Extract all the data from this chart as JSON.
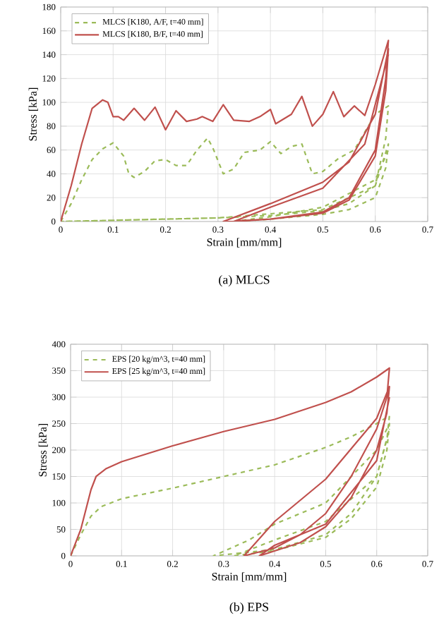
{
  "chart_data": [
    {
      "type": "line",
      "title": "(a) MLCS",
      "xlabel": "Strain [mm/mm]",
      "ylabel": "Stress [kPa]",
      "xlim": [
        0,
        0.7
      ],
      "ylim": [
        0,
        180
      ],
      "xticks": [
        0,
        0.1,
        0.2,
        0.3,
        0.4,
        0.5,
        0.6,
        0.7
      ],
      "yticks": [
        0,
        20,
        40,
        60,
        80,
        100,
        120,
        140,
        160,
        180
      ],
      "grid": true,
      "legend": "top left",
      "marker": "none",
      "series": [
        {
          "name": "MLCS [K180, A/F, t=40 mm]",
          "color": "#9bbb59",
          "line_style": "dashed",
          "x": [
            0,
            0.02,
            0.04,
            0.06,
            0.08,
            0.1,
            0.12,
            0.13,
            0.14,
            0.16,
            0.18,
            0.2,
            0.22,
            0.24,
            0.26,
            0.28,
            0.29,
            0.31,
            0.33,
            0.35,
            0.38,
            0.4,
            0.42,
            0.44,
            0.46,
            0.48,
            0.5,
            0.53,
            0.56,
            0.58,
            0.6,
            0.625,
            0.62,
            0.6,
            0.55,
            0.5,
            0.4,
            0.3,
            0.2,
            0.1,
            0,
            0.1,
            0.3,
            0.5,
            0.6,
            0.625,
            0.62,
            0.6,
            0.55,
            0.5,
            0.4,
            0.33,
            0.4,
            0.5,
            0.6,
            0.625
          ],
          "values": [
            0,
            15,
            35,
            52,
            61,
            66,
            55,
            40,
            37,
            42,
            51,
            52,
            47,
            47,
            60,
            70,
            62,
            40,
            44,
            58,
            60,
            67,
            57,
            63,
            65,
            40,
            42,
            53,
            60,
            75,
            90,
            97,
            70,
            30,
            15,
            9,
            5,
            3,
            2,
            1,
            0,
            1,
            3,
            10,
            30,
            65,
            45,
            20,
            10,
            6,
            2,
            0,
            4,
            12,
            35,
            60
          ]
        },
        {
          "name": "MLCS [K180, B/F, t=40 mm]",
          "color": "#c0504d",
          "line_style": "solid",
          "x": [
            0,
            0.02,
            0.04,
            0.06,
            0.08,
            0.09,
            0.1,
            0.11,
            0.12,
            0.14,
            0.16,
            0.18,
            0.2,
            0.22,
            0.24,
            0.26,
            0.27,
            0.29,
            0.31,
            0.33,
            0.36,
            0.38,
            0.4,
            0.41,
            0.44,
            0.46,
            0.48,
            0.5,
            0.52,
            0.54,
            0.56,
            0.58,
            0.6,
            0.625,
            0.62,
            0.6,
            0.55,
            0.5,
            0.4,
            0.31,
            0.4,
            0.5,
            0.55,
            0.6,
            0.625,
            0.62,
            0.6,
            0.55,
            0.5,
            0.4,
            0.33,
            0.4,
            0.5,
            0.58,
            0.625
          ],
          "values": [
            0,
            30,
            65,
            95,
            102,
            100,
            88,
            88,
            85,
            95,
            85,
            96,
            77,
            93,
            84,
            86,
            88,
            84,
            98,
            85,
            84,
            88,
            94,
            82,
            90,
            105,
            80,
            90,
            109,
            88,
            97,
            89,
            115,
            152,
            120,
            60,
            20,
            8,
            2,
            0,
            15,
            33,
            50,
            90,
            145,
            110,
            55,
            18,
            7,
            2,
            0,
            12,
            28,
            65,
            140
          ]
        }
      ]
    },
    {
      "type": "line",
      "title": "(b) EPS",
      "xlabel": "Strain  [mm/mm]",
      "ylabel": "Stress  [kPa]",
      "xlim": [
        0,
        0.7
      ],
      "ylim": [
        0,
        400
      ],
      "xticks": [
        0,
        0.1,
        0.2,
        0.3,
        0.4,
        0.5,
        0.6,
        0.7
      ],
      "yticks": [
        0,
        50,
        100,
        150,
        200,
        250,
        300,
        350,
        400
      ],
      "grid": true,
      "legend": "top left",
      "marker": "none",
      "series": [
        {
          "name": "EPS [20 kg/m^3, t=40 mm]",
          "color": "#9bbb59",
          "line_style": "dashed",
          "x": [
            0,
            0.02,
            0.04,
            0.06,
            0.1,
            0.2,
            0.3,
            0.4,
            0.5,
            0.55,
            0.6,
            0.625,
            0.62,
            0.6,
            0.55,
            0.5,
            0.4,
            0.28,
            0.35,
            0.4,
            0.5,
            0.6,
            0.625,
            0.62,
            0.6,
            0.55,
            0.5,
            0.4,
            0.32,
            0.4,
            0.5,
            0.6,
            0.625
          ],
          "values": [
            0,
            40,
            75,
            93,
            108,
            128,
            150,
            172,
            205,
            225,
            250,
            265,
            220,
            150,
            80,
            40,
            12,
            0,
            30,
            60,
            100,
            200,
            250,
            200,
            130,
            70,
            35,
            10,
            0,
            30,
            65,
            150,
            240
          ]
        },
        {
          "name": "EPS [25 kg/m^3, t=40 mm]",
          "color": "#c0504d",
          "line_style": "solid",
          "x": [
            0,
            0.02,
            0.04,
            0.05,
            0.07,
            0.1,
            0.2,
            0.3,
            0.4,
            0.5,
            0.55,
            0.6,
            0.625,
            0.62,
            0.6,
            0.55,
            0.5,
            0.45,
            0.4,
            0.34,
            0.4,
            0.5,
            0.6,
            0.625,
            0.62,
            0.6,
            0.55,
            0.5,
            0.45,
            0.37,
            0.4,
            0.5,
            0.6,
            0.625
          ],
          "values": [
            0,
            50,
            125,
            150,
            165,
            178,
            208,
            235,
            258,
            290,
            310,
            338,
            355,
            300,
            240,
            150,
            80,
            40,
            15,
            0,
            65,
            145,
            260,
            320,
            270,
            200,
            110,
            55,
            25,
            0,
            20,
            60,
            180,
            300
          ]
        }
      ]
    }
  ]
}
